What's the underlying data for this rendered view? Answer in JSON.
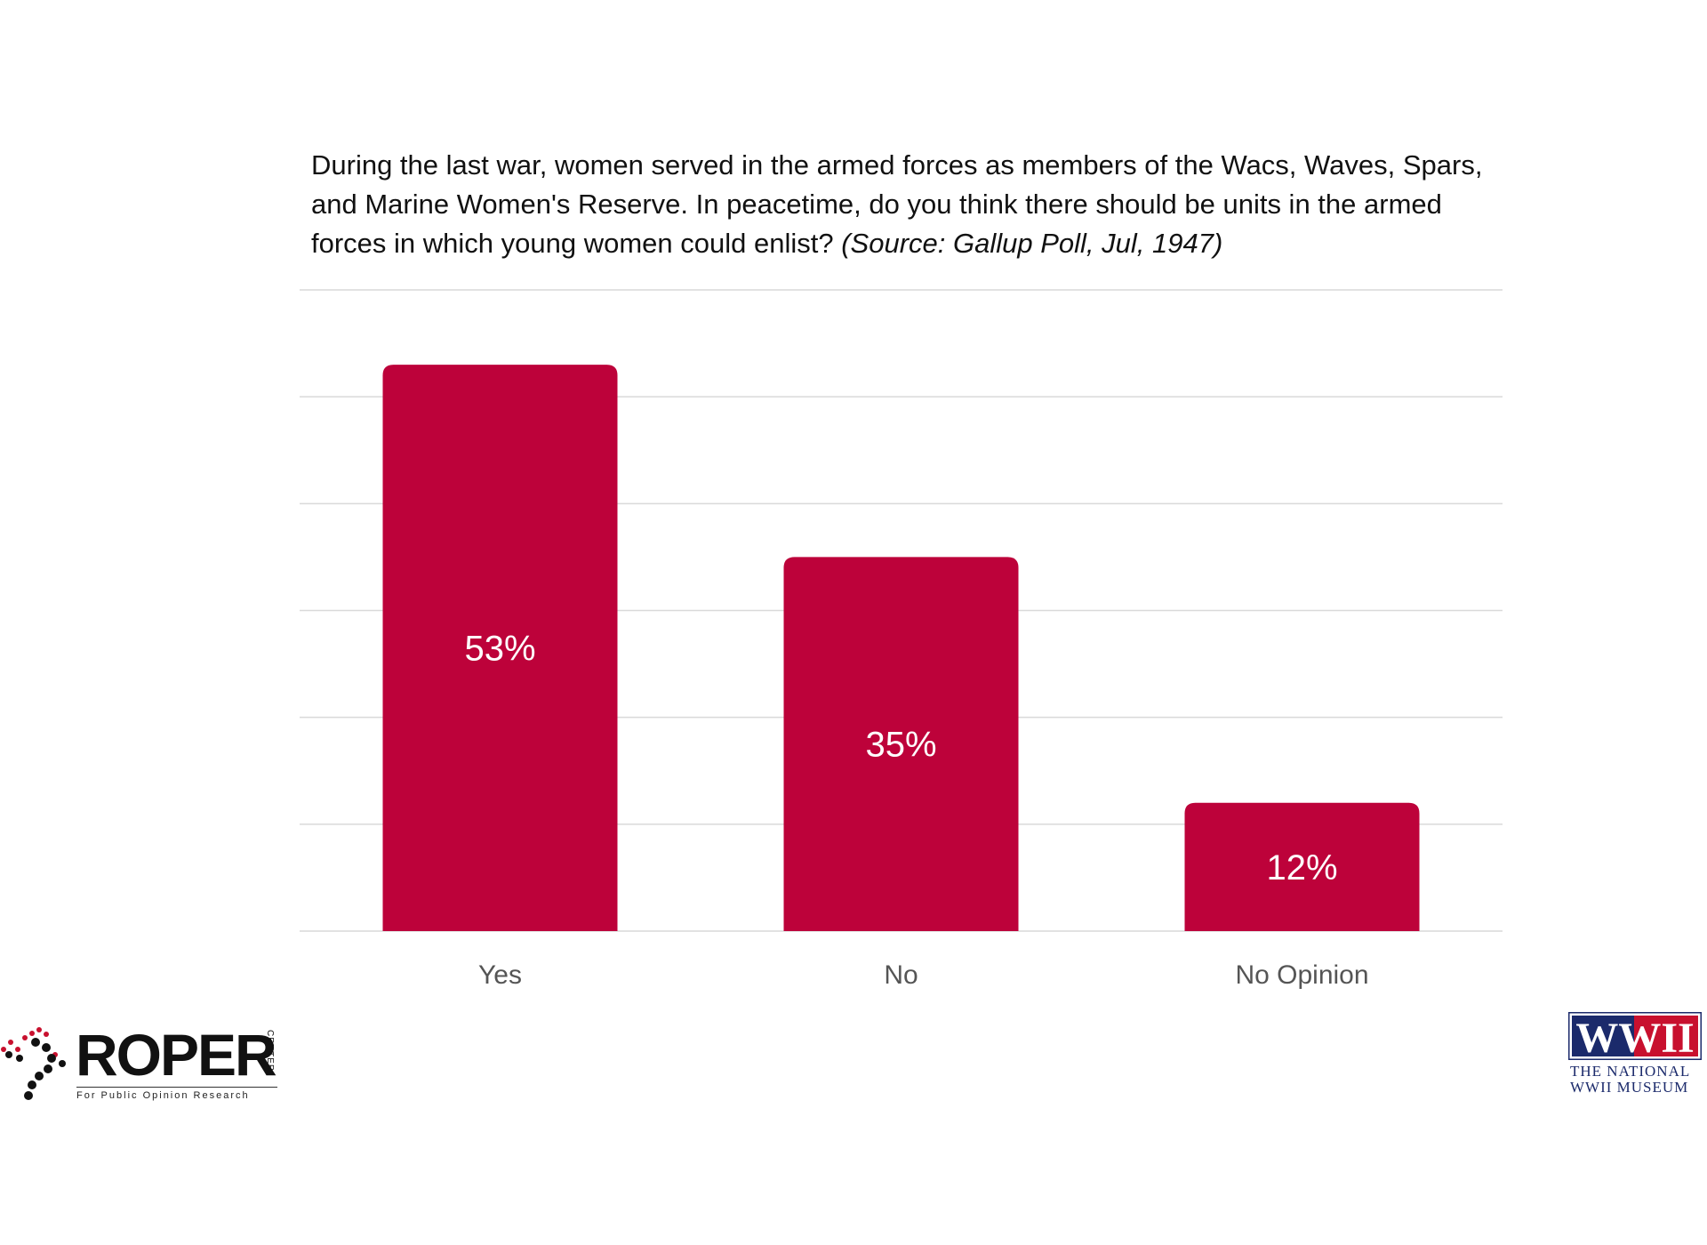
{
  "chart_data": {
    "type": "bar",
    "title": "During the last war, women served in the armed forces as members of the Wacs, Waves, Spars, and Marine Women's Reserve. In peacetime, do you think there should be units in the armed forces in which young women could enlist?",
    "source": "(Source: Gallup Poll, Jul, 1947)",
    "categories": [
      "Yes",
      "No",
      "No Opinion"
    ],
    "values": [
      53,
      35,
      12
    ],
    "value_labels": [
      "53%",
      "35%",
      "12%"
    ],
    "xlabel": "",
    "ylabel": "",
    "ylim": [
      0,
      60
    ],
    "grid": true,
    "bar_color": "#bd023a",
    "grid_color": "#d9d9d9",
    "label_color": "#ffffff"
  },
  "logos": {
    "roper": {
      "wordmark": "ROPER",
      "center": "CENTER",
      "tagline": "For Public Opinion Research"
    },
    "museum": {
      "badge": "WWII",
      "name_line1": "THE NATIONAL",
      "name_line2": "WWII MUSEUM"
    }
  }
}
